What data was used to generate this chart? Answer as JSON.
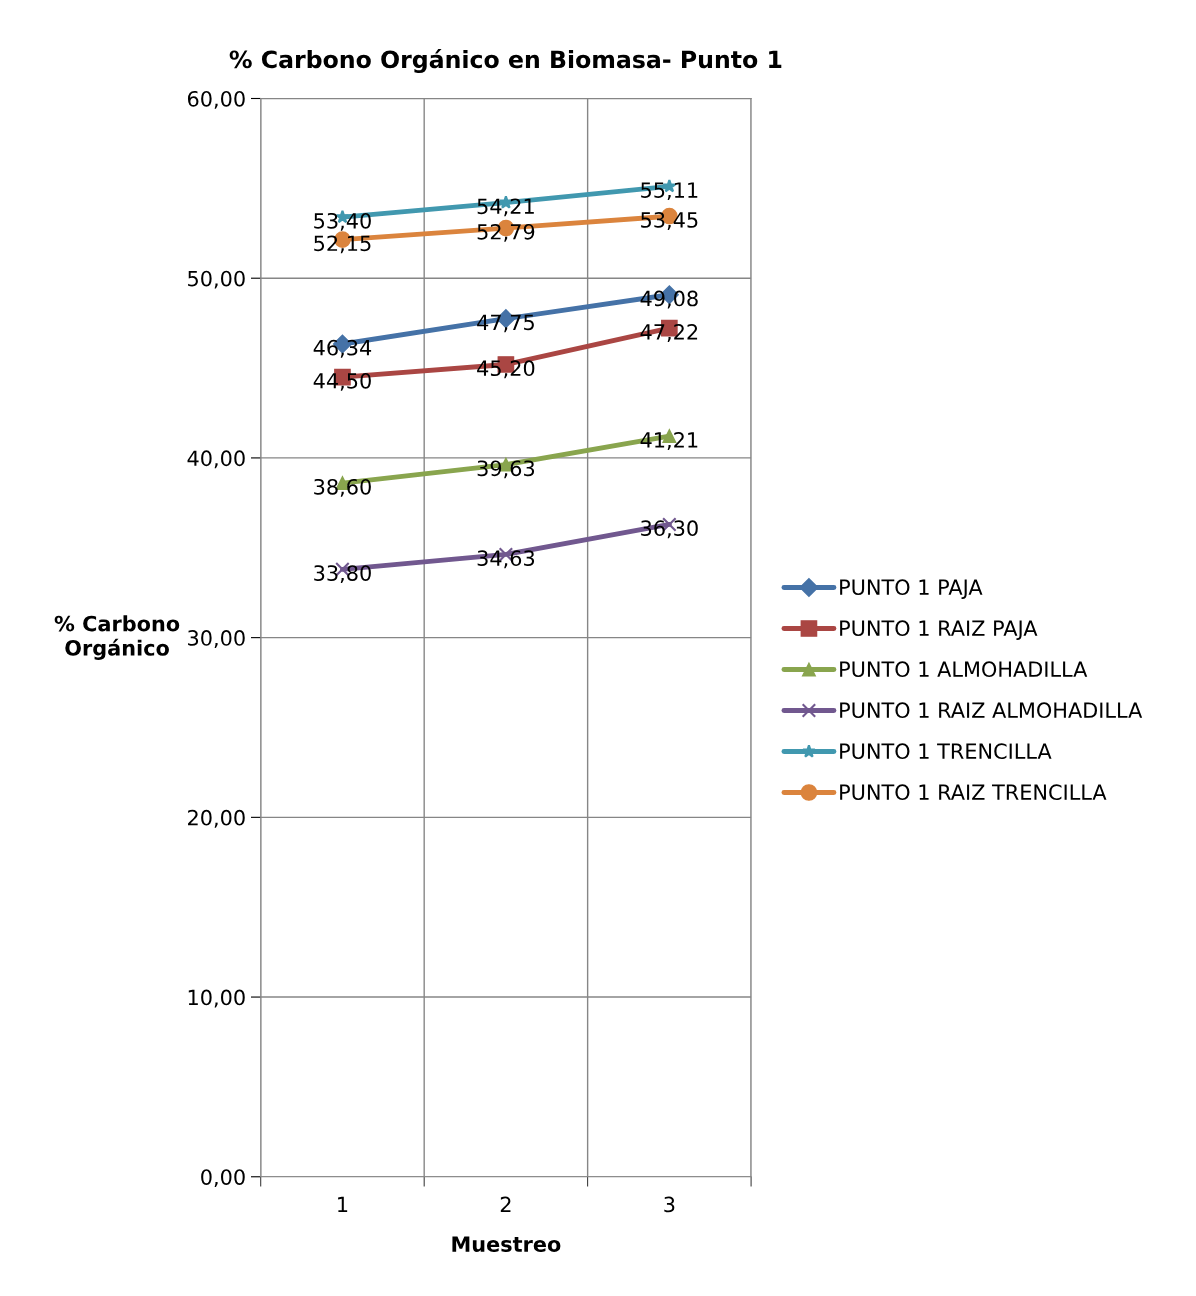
{
  "chart_data": {
    "type": "line",
    "title": "% Carbono Orgánico en Biomasa- Punto 1",
    "xlabel": "Muestreo",
    "ylabel": "% Carbono\nOrgánico",
    "categories": [
      "1",
      "2",
      "3"
    ],
    "ylim": [
      0,
      60
    ],
    "yticks": [
      {
        "value": 0,
        "label": "0,00"
      },
      {
        "value": 10,
        "label": "10,00"
      },
      {
        "value": 20,
        "label": "20,00"
      },
      {
        "value": 30,
        "label": "30,00"
      },
      {
        "value": 40,
        "label": "40,00"
      },
      {
        "value": 50,
        "label": "50,00"
      },
      {
        "value": 60,
        "label": "60,00"
      }
    ],
    "grid": true,
    "legend": "right",
    "line_style": "solid",
    "series": [
      {
        "name": "PUNTO 1 PAJA",
        "color": "#4572a7",
        "marker": "diamond",
        "values": [
          46.34,
          47.75,
          49.08
        ],
        "value_labels": [
          "46,34",
          "47,75",
          "49,08"
        ]
      },
      {
        "name": "PUNTO 1 RAIZ PAJA",
        "color": "#aa4643",
        "marker": "square",
        "values": [
          44.5,
          45.2,
          47.22
        ],
        "value_labels": [
          "44,50",
          "45,20",
          "47,22"
        ]
      },
      {
        "name": "PUNTO 1 ALMOHADILLA",
        "color": "#89a54e",
        "marker": "triangle",
        "values": [
          38.6,
          39.63,
          41.21
        ],
        "value_labels": [
          "38,60",
          "39,63",
          "41,21"
        ]
      },
      {
        "name": "PUNTO 1 RAIZ ALMOHADILLA",
        "color": "#71588f",
        "marker": "cross",
        "values": [
          33.8,
          34.63,
          36.3
        ],
        "value_labels": [
          "33,80",
          "34,63",
          "36,30"
        ]
      },
      {
        "name": "PUNTO 1 TRENCILLA",
        "color": "#4198af",
        "marker": "star",
        "values": [
          53.4,
          54.21,
          55.11
        ],
        "value_labels": [
          "53,40",
          "54,21",
          "55,11"
        ]
      },
      {
        "name": "PUNTO 1 RAIZ TRENCILLA",
        "color": "#db843d",
        "marker": "circle",
        "values": [
          52.15,
          52.79,
          53.45
        ],
        "value_labels": [
          "52,15",
          "52,79",
          "53,45"
        ]
      }
    ]
  }
}
